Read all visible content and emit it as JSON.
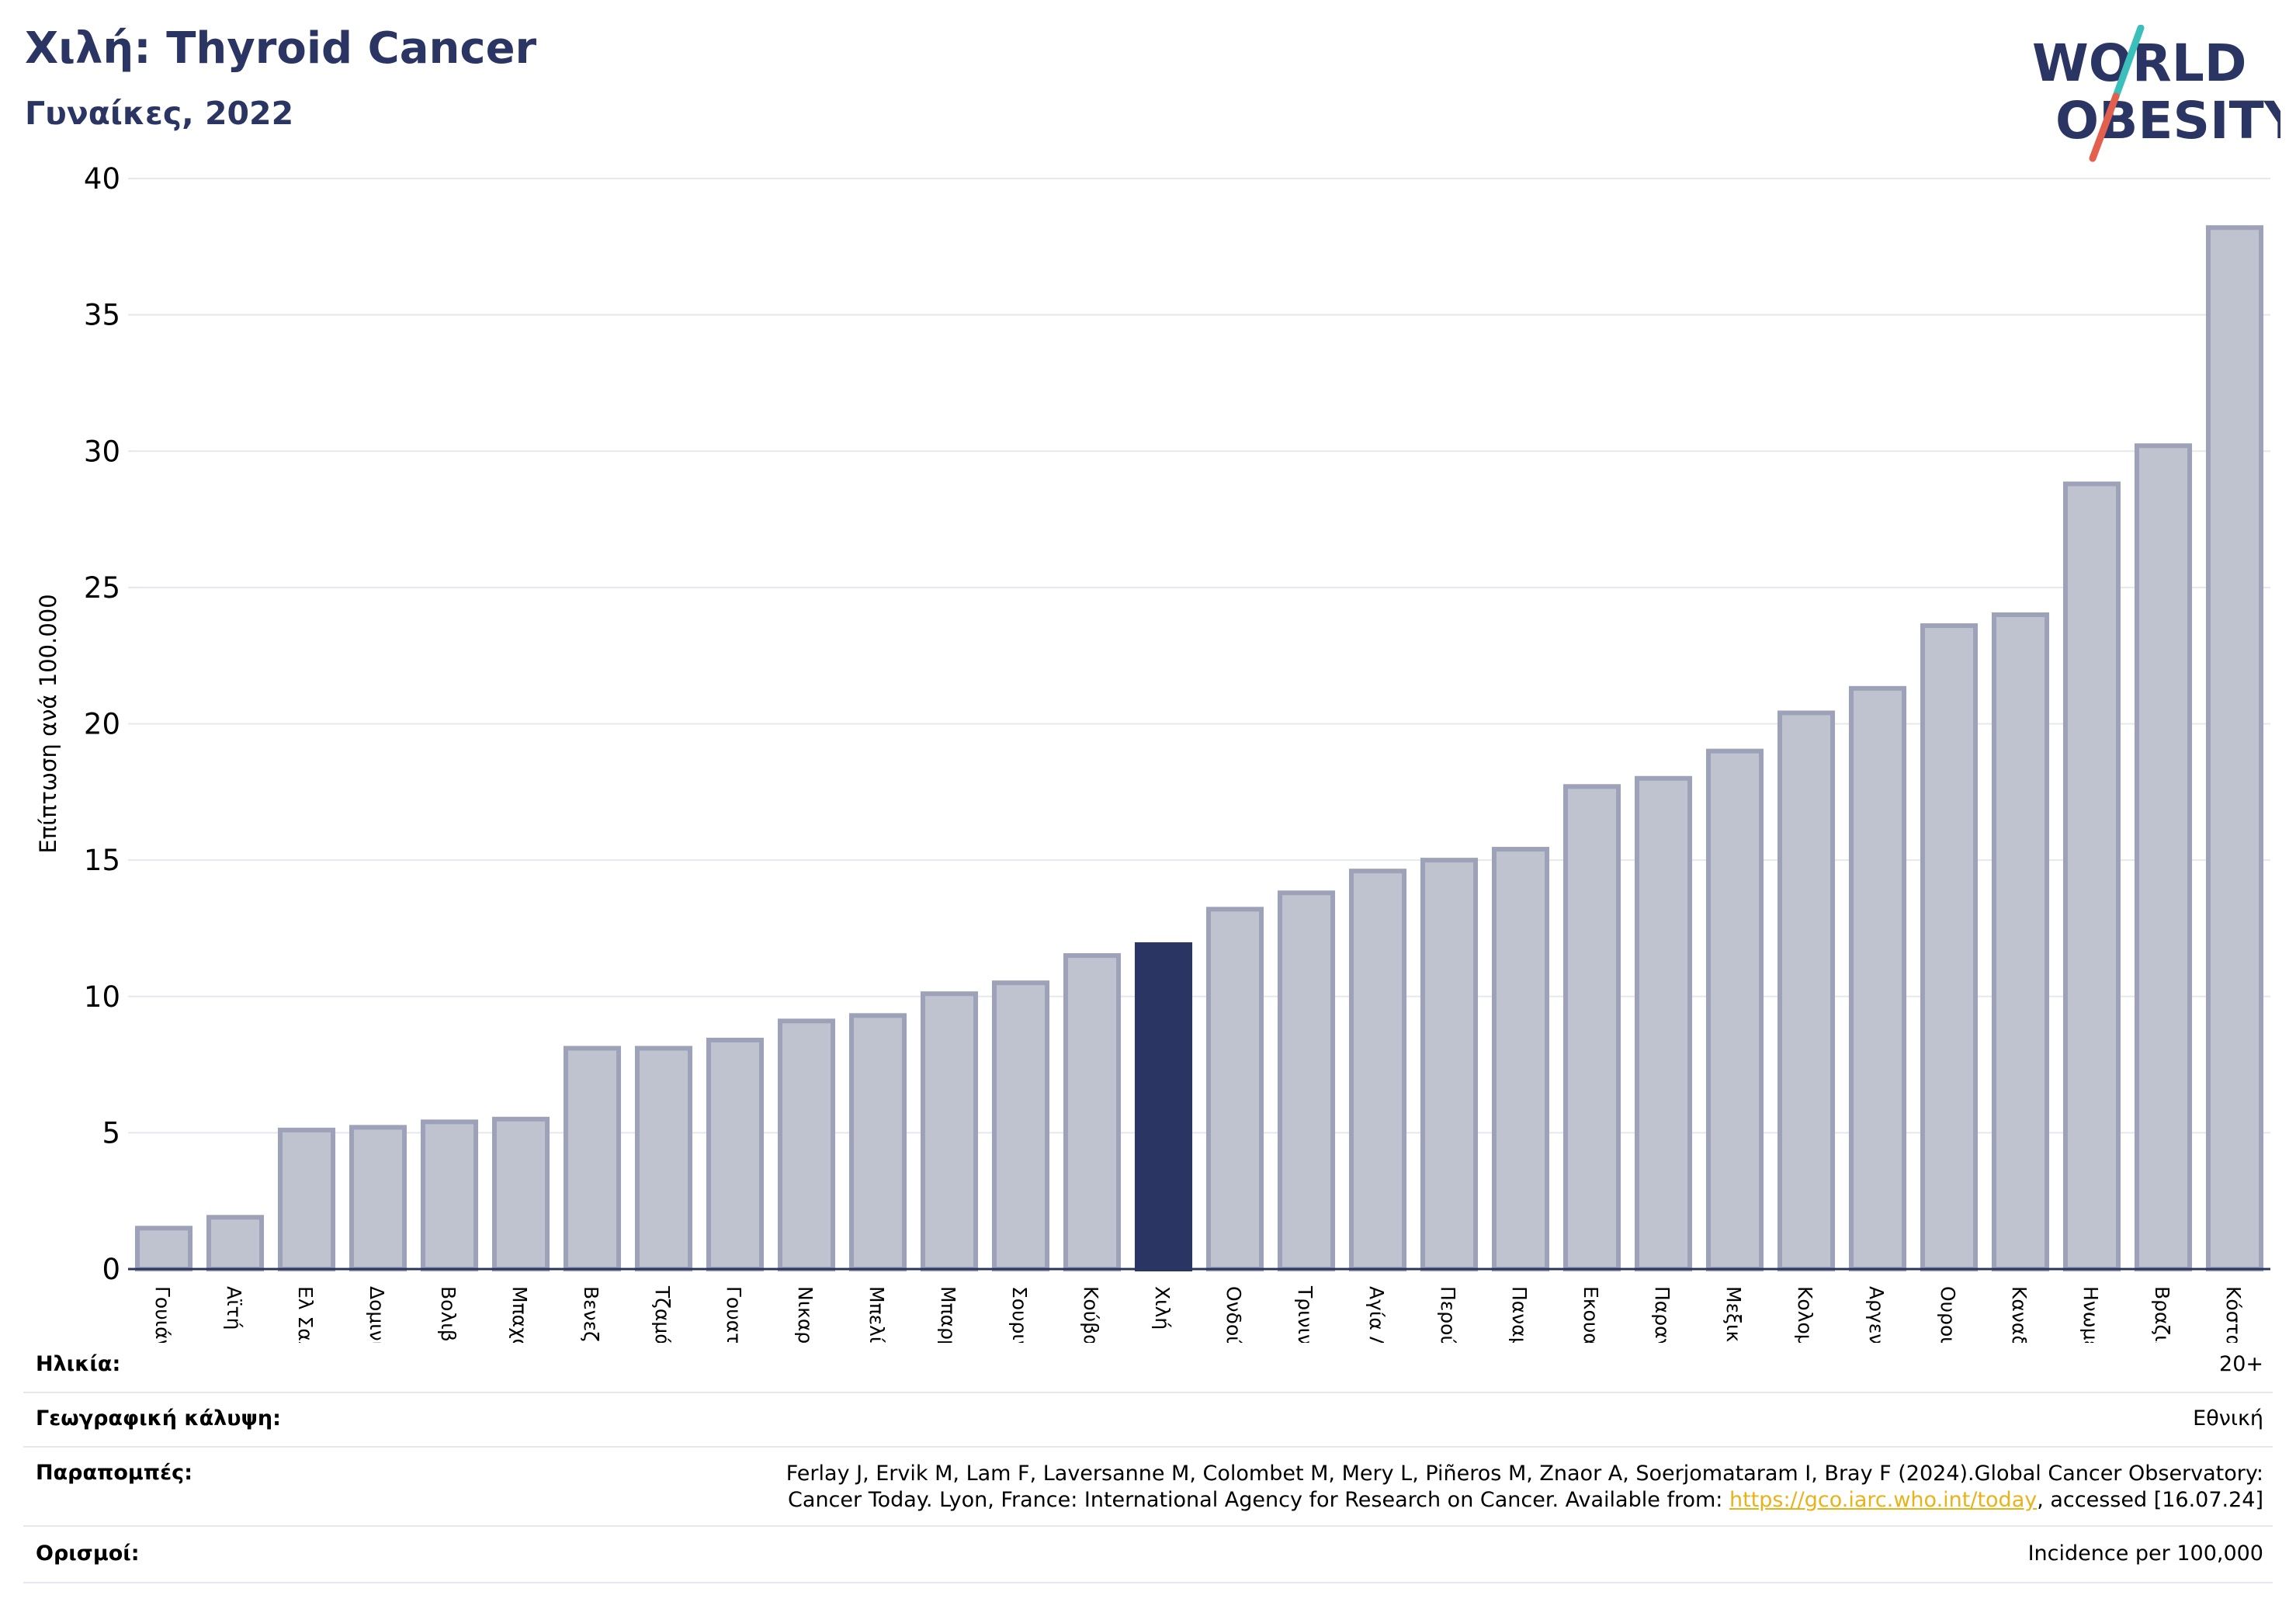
{
  "header": {
    "title": "Χιλή: Thyroid Cancer",
    "subtitle": "Γυναίκες, 2022"
  },
  "logo": {
    "line1": "WORLD",
    "line2": "OBESITY",
    "slash_colors": [
      "#3bbfba",
      "#e4604e"
    ],
    "text_color": "#2a3563"
  },
  "colors": {
    "bar": "#bfc2cf",
    "bar_edge": "#9da2b8",
    "highlight": "#2a3563",
    "axis": "#2a3563",
    "grid": "#e6e8f0",
    "link": "#e8b21a"
  },
  "chart_data": {
    "type": "bar",
    "title": "",
    "xlabel": "",
    "ylabel": "Επίπτωση ανά 100.000",
    "ylim": [
      0,
      40
    ],
    "yticks": [
      0,
      5,
      10,
      15,
      20,
      25,
      30,
      35,
      40
    ],
    "grid": true,
    "highlight": "Χιλή",
    "categories": [
      "Γουιάνα",
      "Αϊτή",
      "Ελ Σαλβαδόρ",
      "Δομινικανή Δημοκρατία",
      "Βολιβία",
      "Μπαχάμες",
      "Βενεζουέλα",
      "Τζαμάικα",
      "Γουατεμάλα",
      "Νικαράγουα",
      "Μπελίζ",
      "Μπαρμπάντος",
      "Σουρινάμ",
      "Κούβα",
      "Χιλή",
      "Ονδούρα",
      "Τρινιντάντ και Τομπάγκο",
      "Αγία Λουκία",
      "Περού",
      "Παναμάς",
      "Εκουαδόρ",
      "Παραγουάη",
      "Μεξικό",
      "Κολομβία",
      "Αργεντινή",
      "Ουρουγουάη",
      "Καναδάς",
      "Ηνωμένες Πολιτείες",
      "Βραζιλία",
      "Κόστα Ρίκα"
    ],
    "values": [
      1.5,
      1.9,
      5.1,
      5.2,
      5.4,
      5.5,
      8.1,
      8.1,
      8.4,
      9.1,
      9.3,
      10.1,
      10.5,
      11.5,
      11.9,
      13.2,
      13.8,
      14.6,
      15.0,
      15.4,
      17.7,
      18.0,
      19.0,
      20.4,
      21.3,
      23.6,
      24.0,
      28.8,
      30.2,
      38.2
    ]
  },
  "meta": {
    "age": {
      "label": "Ηλικία:",
      "value": "20+"
    },
    "coverage": {
      "label": "Γεωγραφική κάλυψη:",
      "value": "Εθνική"
    },
    "references": {
      "label": "Παραπομπές:",
      "line1": "Ferlay J, Ervik M, Lam F, Laversanne M, Colombet M, Mery L, Piñeros M, Znaor A, Soerjomataram I, Bray F (2024).Global Cancer Observatory:",
      "line2_pre": "Cancer Today. Lyon, France: International Agency for Research on Cancer. Available from: ",
      "link": "https://gco.iarc.who.int/today",
      "line2_post": ", accessed [16.07.24]"
    },
    "definitions": {
      "label": "Ορισμοί:",
      "value": "Incidence per 100,000"
    }
  }
}
